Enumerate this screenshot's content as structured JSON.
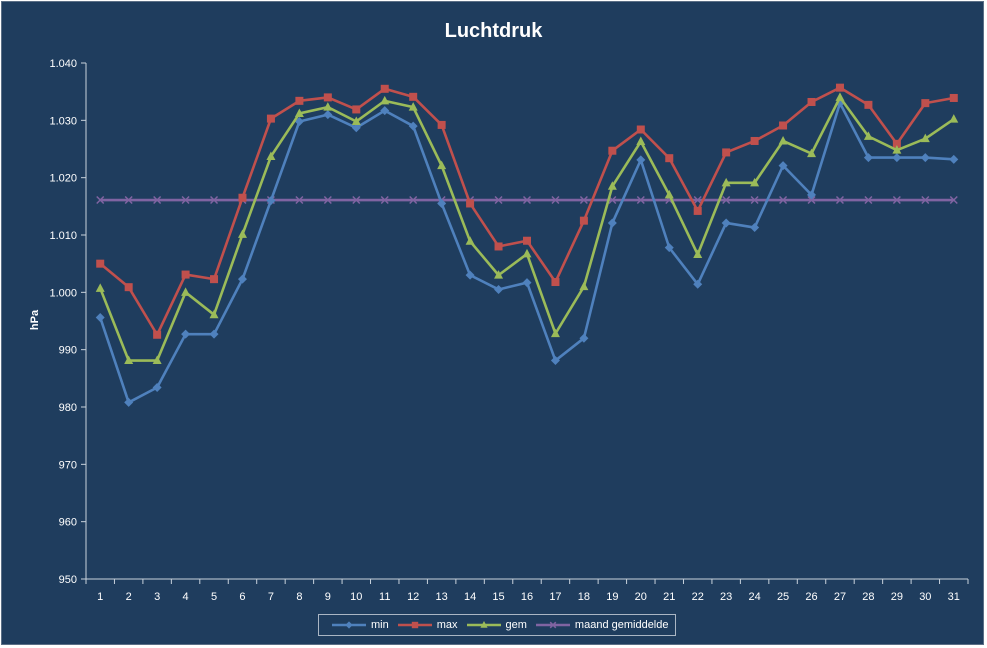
{
  "chart_data": {
    "type": "line",
    "title": "Luchtdruk",
    "xlabel": "",
    "ylabel": "hPa",
    "ylim": [
      950,
      1040
    ],
    "yticks": [
      950,
      960,
      970,
      980,
      990,
      1000,
      1010,
      1020,
      1030,
      1040
    ],
    "ytick_labels": [
      "950",
      "960",
      "970",
      "980",
      "990",
      "1.000",
      "1.010",
      "1.020",
      "1.030",
      "1.040"
    ],
    "categories": [
      "1",
      "2",
      "3",
      "4",
      "5",
      "6",
      "7",
      "8",
      "9",
      "10",
      "11",
      "12",
      "13",
      "14",
      "15",
      "16",
      "17",
      "18",
      "19",
      "20",
      "21",
      "22",
      "23",
      "24",
      "25",
      "26",
      "27",
      "28",
      "29",
      "30",
      "31"
    ],
    "grid": false,
    "legend_position": "bottom",
    "series": [
      {
        "name": "min",
        "color": "#4f81bd",
        "marker": "diamond",
        "values": [
          995.6,
          980.8,
          983.4,
          992.7,
          992.7,
          1002.3,
          1016.0,
          1029.8,
          1031.0,
          1028.7,
          1031.7,
          1029.0,
          1015.5,
          1003.0,
          1000.5,
          1001.7,
          988.1,
          992.0,
          1012.1,
          1023.1,
          1007.8,
          1001.4,
          1012.1,
          1011.3,
          1022.1,
          1017.0,
          1033.0,
          1023.5,
          1023.5,
          1023.5,
          1023.2
        ]
      },
      {
        "name": "max",
        "color": "#c0504d",
        "marker": "square",
        "values": [
          1005.0,
          1000.9,
          992.6,
          1003.1,
          1002.3,
          1016.5,
          1030.3,
          1033.4,
          1034.0,
          1031.9,
          1035.5,
          1034.1,
          1029.2,
          1015.5,
          1008.0,
          1009.0,
          1001.8,
          1012.5,
          1024.7,
          1028.4,
          1023.4,
          1014.2,
          1024.4,
          1026.4,
          1029.1,
          1033.2,
          1035.7,
          1032.7,
          1025.9,
          1033.0,
          1033.9
        ]
      },
      {
        "name": "gem",
        "color": "#9bbb59",
        "marker": "triangle",
        "values": [
          1000.7,
          988.1,
          988.1,
          1000.0,
          996.1,
          1010.1,
          1023.7,
          1031.2,
          1032.3,
          1029.8,
          1033.4,
          1032.3,
          1022.1,
          1008.9,
          1003.0,
          1006.7,
          992.8,
          1001.0,
          1018.5,
          1026.3,
          1017.0,
          1006.6,
          1019.1,
          1019.1,
          1026.4,
          1024.2,
          1034.0,
          1027.2,
          1024.8,
          1026.8,
          1030.2
        ]
      },
      {
        "name": "maand gemiddelde",
        "color": "#8064a2",
        "marker": "x",
        "values": [
          1016.1,
          1016.1,
          1016.1,
          1016.1,
          1016.1,
          1016.1,
          1016.1,
          1016.1,
          1016.1,
          1016.1,
          1016.1,
          1016.1,
          1016.1,
          1016.1,
          1016.1,
          1016.1,
          1016.1,
          1016.1,
          1016.1,
          1016.1,
          1016.1,
          1016.1,
          1016.1,
          1016.1,
          1016.1,
          1016.1,
          1016.1,
          1016.1,
          1016.1,
          1016.1,
          1016.1
        ]
      }
    ]
  }
}
